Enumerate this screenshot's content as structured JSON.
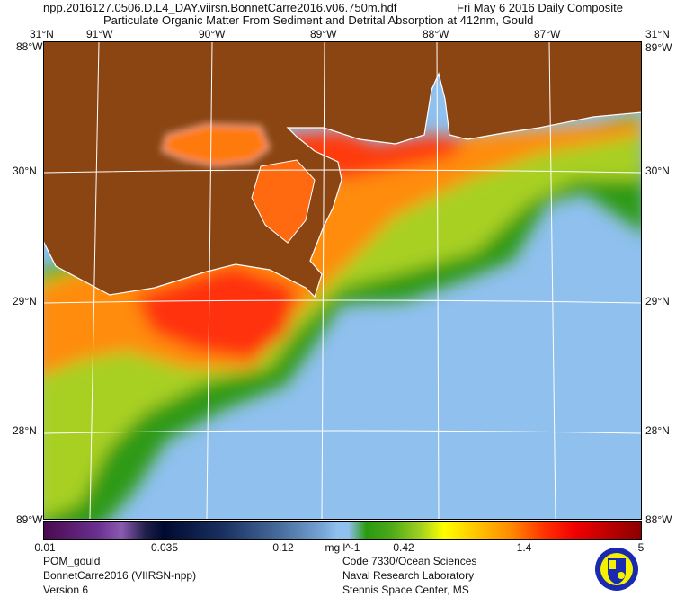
{
  "header": {
    "filename": "npp.2016127.0506.D.L4_DAY.viirsn.BonnetCarre2016.v06.750m.hdf",
    "date_label": "Fri May  6 2016 Daily Composite",
    "product_title": "Particulate Organic Matter From Sediment and Detrital Absorption at 412nm, Gould"
  },
  "map": {
    "top_lon_labels": [
      "91°W",
      "90°W",
      "89°W",
      "88°W",
      "87°W"
    ],
    "lat_labels": [
      "30°N",
      "29°N",
      "28°N"
    ],
    "corner_labels": {
      "top_left_lat": "31°N",
      "top_left_lon": "88°W",
      "top_right_lat": "31°N",
      "top_right_lon": "89°W",
      "bottom_left": "89°W",
      "bottom_right": "88°W"
    },
    "colors": {
      "land": "#8b4513",
      "water_low": "#8fc0ee",
      "grid": "#ffffff"
    }
  },
  "colorbar": {
    "ticks": [
      "0.01",
      "0.035",
      "0.12",
      "0.42",
      "1.4",
      "5"
    ],
    "units": "mg l^-1",
    "range": [
      0.01,
      5
    ],
    "scale": "log"
  },
  "footer": {
    "left": [
      "POM_gould",
      "BonnetCarre2016 (VIIRSN-npp)",
      "Version 6"
    ],
    "right": [
      "Code 7330/Ocean Sciences",
      "Naval Research Laboratory",
      "Stennis Space Center, MS"
    ]
  }
}
